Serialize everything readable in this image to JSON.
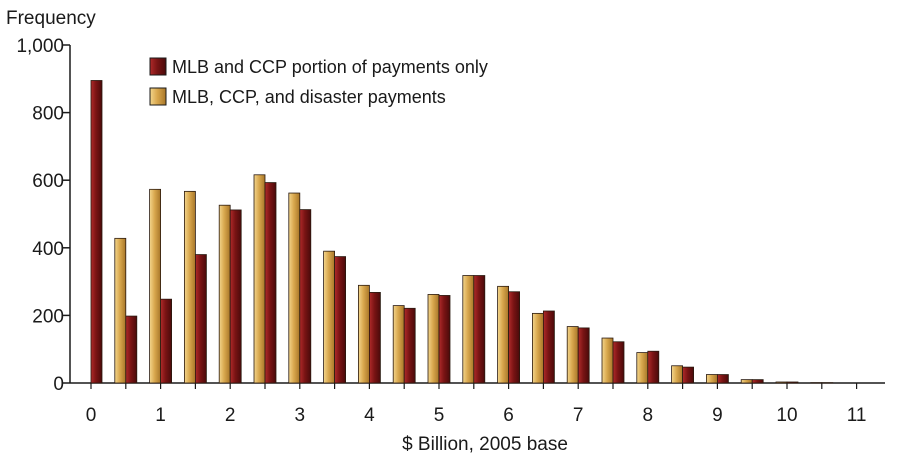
{
  "chart_data": {
    "type": "bar",
    "ylabel": "Frequency",
    "xlabel": "$ Billion, 2005 base",
    "ylim": [
      0,
      1000
    ],
    "yticks": [
      "0",
      "200",
      "400",
      "600",
      "800",
      "1,000"
    ],
    "yticks_values": [
      0,
      200,
      400,
      600,
      800,
      1000
    ],
    "xtick_labels": [
      "0",
      "1",
      "2",
      "3",
      "4",
      "5",
      "6",
      "7",
      "8",
      "9",
      "10",
      "11"
    ],
    "xtick_values": [
      0,
      1,
      2,
      3,
      4,
      5,
      6,
      7,
      8,
      9,
      10,
      11
    ],
    "bin_centers": [
      0,
      0.5,
      1,
      1.5,
      2,
      2.5,
      3,
      3.5,
      4,
      4.5,
      5,
      5.5,
      6,
      6.5,
      7,
      7.5,
      8,
      8.5,
      9,
      9.5,
      10,
      10.5,
      11,
      11.5
    ],
    "legend_position": "top-left",
    "series": [
      {
        "name": "MLB and CCP portion of payments only",
        "color": "#7a1414",
        "values": [
          895,
          198,
          248,
          380,
          512,
          593,
          513,
          374,
          268,
          221,
          259,
          318,
          270,
          213,
          163,
          122,
          94,
          47,
          25,
          10,
          3,
          1,
          0,
          0
        ]
      },
      {
        "name": "MLB, CCP, and disaster payments",
        "color": "#d9a84e",
        "values": [
          0,
          428,
          573,
          567,
          526,
          616,
          562,
          390,
          289,
          229,
          262,
          318,
          286,
          206,
          167,
          133,
          90,
          51,
          25,
          10,
          3,
          1,
          0,
          0
        ]
      }
    ]
  }
}
